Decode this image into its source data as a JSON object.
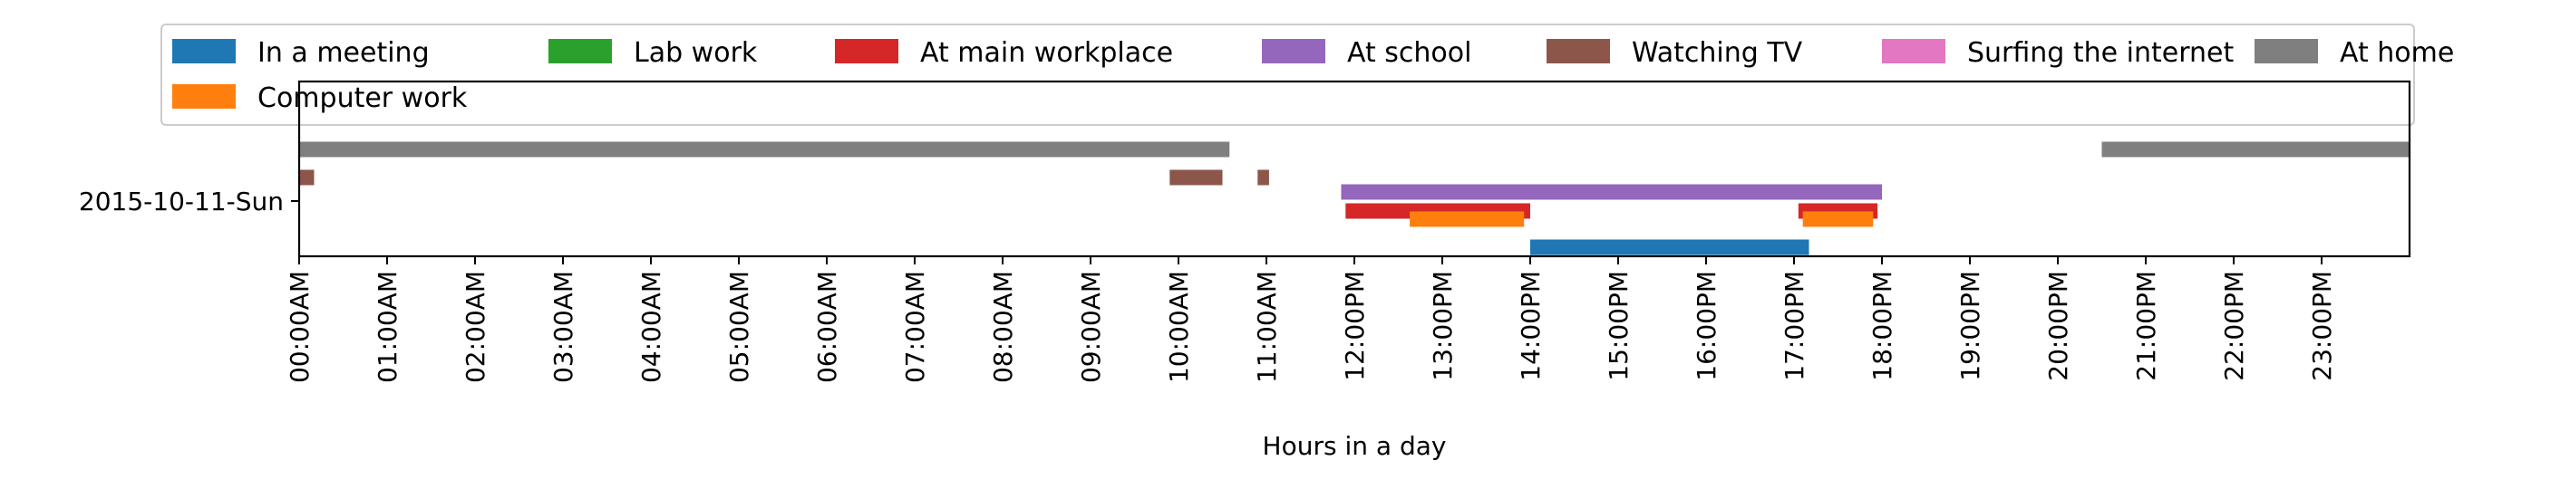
{
  "chart_data": {
    "type": "timeline",
    "xlabel": "Hours in a day",
    "ylabel": "",
    "y_categories": [
      "2015-10-11-Sun"
    ],
    "x_range_hours": [
      0,
      24
    ],
    "x_ticks": [
      "00:00AM",
      "01:00AM",
      "02:00AM",
      "03:00AM",
      "04:00AM",
      "05:00AM",
      "06:00AM",
      "07:00AM",
      "08:00AM",
      "09:00AM",
      "10:00AM",
      "11:00AM",
      "12:00PM",
      "13:00PM",
      "14:00PM",
      "15:00PM",
      "16:00PM",
      "17:00PM",
      "18:00PM",
      "19:00PM",
      "20:00PM",
      "21:00PM",
      "22:00PM",
      "23:00PM"
    ],
    "grid": false,
    "legend_position": "top",
    "series": [
      {
        "name": "In a meeting",
        "color": "#1f77b4",
        "lane": 0,
        "intervals": [
          [
            14.0,
            17.17
          ]
        ]
      },
      {
        "name": "Lab work",
        "color": "#2ca02c",
        "lane": 6,
        "intervals": []
      },
      {
        "name": "At main workplace",
        "color": "#d62728",
        "lane": 2,
        "intervals": [
          [
            11.9,
            14.0
          ],
          [
            17.05,
            17.95
          ]
        ]
      },
      {
        "name": "At school",
        "color": "#9467bd",
        "lane": 3,
        "intervals": [
          [
            11.85,
            18.0
          ]
        ]
      },
      {
        "name": "Watching TV",
        "color": "#8c564b",
        "lane": 4,
        "intervals": [
          [
            0.0,
            0.17
          ],
          [
            9.9,
            10.5
          ],
          [
            10.9,
            11.03
          ]
        ]
      },
      {
        "name": "Surfing the internet",
        "color": "#e377c2",
        "lane": 6,
        "intervals": []
      },
      {
        "name": "At home",
        "color": "#7f7f7f",
        "lane": 5,
        "intervals": [
          [
            0.0,
            10.58
          ],
          [
            20.5,
            24.0
          ]
        ]
      },
      {
        "name": "Computer work",
        "color": "#ff7f0e",
        "lane": 1,
        "intervals": [
          [
            12.63,
            13.93
          ],
          [
            17.1,
            17.9
          ]
        ]
      }
    ]
  }
}
